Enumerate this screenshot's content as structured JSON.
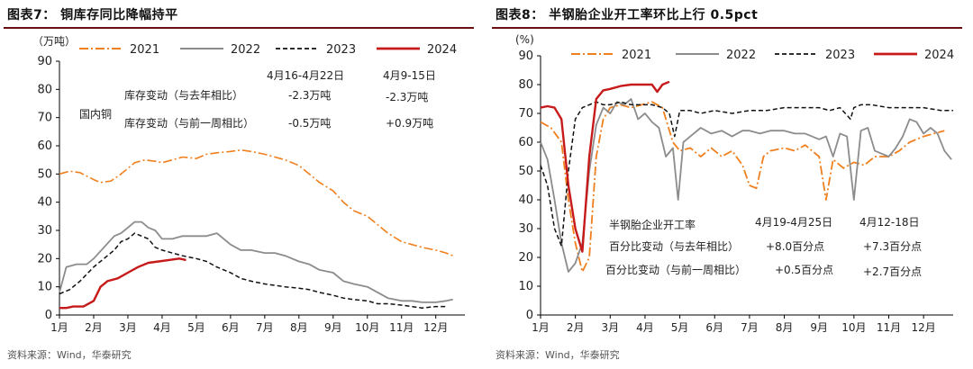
{
  "left": {
    "title": "图表7： 铜库存同比降幅持平",
    "source": "资料来源：Wind，华泰研究",
    "chart_data": {
      "type": "line",
      "unit": "（万吨）",
      "ylim": [
        0,
        90
      ],
      "yticks": [
        "0",
        "10",
        "20",
        "30",
        "40",
        "50",
        "60",
        "70",
        "80",
        "90"
      ],
      "months": [
        "1月",
        "2月",
        "3月",
        "4月",
        "5月",
        "6月",
        "7月",
        "8月",
        "9月",
        "10月",
        "11月",
        "12月"
      ],
      "xmax": 12.85,
      "legend": [
        "2021",
        "2022",
        "2023",
        "2024"
      ],
      "series": [
        {
          "name": "2021",
          "color": "#f07f1e",
          "dash": "10,3,2,3",
          "width": 1.6,
          "x": [
            1,
            1.3,
            1.6,
            2,
            2.2,
            2.5,
            2.8,
            3,
            3.2,
            3.5,
            3.8,
            4,
            4.3,
            4.6,
            5,
            5.3,
            5.6,
            6,
            6.3,
            6.6,
            7,
            7.3,
            7.6,
            8,
            8.3,
            8.6,
            9,
            9.3,
            9.6,
            10,
            10.3,
            10.6,
            11,
            11.3,
            11.6,
            12,
            12.3,
            12.5
          ],
          "y": [
            50,
            51,
            50.5,
            48,
            47,
            47.5,
            50,
            52,
            54,
            55,
            54.5,
            54,
            55,
            56,
            55.5,
            57,
            57.5,
            58,
            58.5,
            58,
            57,
            56,
            55,
            53,
            50,
            47,
            44,
            40,
            37,
            35,
            32,
            29,
            26,
            25,
            24,
            23,
            22,
            21
          ]
        },
        {
          "name": "2022",
          "color": "#8c8c8c",
          "dash": "",
          "width": 1.8,
          "x": [
            1,
            1.2,
            1.5,
            1.8,
            2,
            2.3,
            2.6,
            2.8,
            3,
            3.2,
            3.4,
            3.6,
            3.8,
            4,
            4.3,
            4.6,
            5,
            5.3,
            5.6,
            6,
            6.3,
            6.6,
            7,
            7.3,
            7.6,
            8,
            8.3,
            8.6,
            9,
            9.3,
            9.6,
            10,
            10.3,
            10.6,
            11,
            11.3,
            11.6,
            12,
            12.3,
            12.5
          ],
          "y": [
            8,
            17,
            18,
            18,
            20,
            24,
            28,
            29,
            31,
            33,
            33,
            31,
            30,
            27,
            27,
            28,
            28,
            28,
            29,
            25,
            23,
            23,
            22,
            22,
            21,
            19,
            18,
            16,
            15,
            12,
            11,
            10,
            8,
            6,
            5,
            5,
            4.5,
            4.5,
            5,
            5.5
          ]
        },
        {
          "name": "2023",
          "color": "#111111",
          "dash": "5,3",
          "width": 1.5,
          "x": [
            1,
            1.3,
            1.6,
            2,
            2.3,
            2.6,
            2.8,
            3,
            3.2,
            3.4,
            3.6,
            3.8,
            4,
            4.3,
            4.6,
            5,
            5.3,
            5.6,
            6,
            6.3,
            6.6,
            7,
            7.3,
            7.6,
            8,
            8.3,
            8.6,
            9,
            9.3,
            9.6,
            10,
            10.3,
            10.6,
            11,
            11.3,
            11.6,
            12,
            12.3
          ],
          "y": [
            7.5,
            9,
            12,
            17,
            20,
            23,
            26,
            27,
            29,
            28,
            27,
            24,
            23,
            22,
            21,
            20,
            19,
            17,
            15,
            13,
            12,
            11,
            10.5,
            10,
            9.5,
            9,
            8,
            7,
            6,
            5.5,
            5,
            4,
            4,
            3.5,
            3,
            2.5,
            3,
            3
          ]
        },
        {
          "name": "2024",
          "color": "#c71a1a",
          "dash": "",
          "width": 2.4,
          "x": [
            1,
            1.2,
            1.4,
            1.7,
            2,
            2.2,
            2.4,
            2.7,
            3,
            3.3,
            3.6,
            3.9,
            4.2,
            4.5,
            4.7
          ],
          "y": [
            2.5,
            2.5,
            3,
            3,
            5,
            10,
            12,
            13,
            15,
            17,
            18.5,
            19,
            19.5,
            20,
            19.5
          ]
        }
      ],
      "annotations": {
        "date1": "4月16-4月22日",
        "date2": "4月9-15日",
        "category": "国内铜",
        "row1_label": "库存变动（与去年相比）",
        "row1_val1": "-2.3万吨",
        "row1_val2": "-2.3万吨",
        "row2_label": "库存变动（与前一周相比）",
        "row2_val1": "-0.5万吨",
        "row2_val2": "+0.9万吨"
      }
    }
  },
  "right": {
    "title": "图表8： 半钢胎企业开工率环比上行 0.5pct",
    "source": "资料来源：Wind，华泰研究",
    "chart_data": {
      "type": "line",
      "unit": "(%)",
      "ylim": [
        0,
        90
      ],
      "yticks": [
        "0",
        "10",
        "20",
        "30",
        "40",
        "50",
        "60",
        "70",
        "80",
        "90"
      ],
      "months": [
        "1月",
        "2月",
        "3月",
        "4月",
        "5月",
        "6月",
        "7月",
        "8月",
        "9月",
        "10月",
        "11月",
        "12月"
      ],
      "xmax": 12.85,
      "legend": [
        "2021",
        "2022",
        "2023",
        "2024"
      ],
      "series": [
        {
          "name": "2021",
          "color": "#f07f1e",
          "dash": "10,3,2,3",
          "width": 1.8,
          "x": [
            1,
            1.3,
            1.6,
            1.8,
            2,
            2.2,
            2.4,
            2.6,
            2.8,
            3,
            3.3,
            3.6,
            3.9,
            4.2,
            4.5,
            4.8,
            5,
            5.3,
            5.6,
            5.9,
            6.2,
            6.5,
            6.8,
            7,
            7.2,
            7.4,
            7.6,
            8,
            8.3,
            8.6,
            9,
            9.2,
            9.4,
            9.7,
            10,
            10.3,
            10.6,
            11,
            11.3,
            11.6,
            12,
            12.3,
            12.6
          ],
          "y": [
            67,
            65,
            60,
            40,
            25,
            15,
            20,
            55,
            68,
            72,
            73,
            72,
            73,
            74,
            72,
            60,
            57,
            58,
            55,
            58,
            55,
            57,
            52,
            45,
            44,
            55,
            57,
            58,
            57,
            59,
            55,
            40,
            54,
            51,
            53,
            52,
            55,
            55,
            57,
            60,
            62,
            63,
            64
          ]
        },
        {
          "name": "2022",
          "color": "#8c8c8c",
          "dash": "",
          "width": 1.8,
          "x": [
            1,
            1.2,
            1.4,
            1.6,
            1.8,
            2,
            2.2,
            2.4,
            2.6,
            2.8,
            3,
            3.2,
            3.4,
            3.6,
            3.8,
            4,
            4.2,
            4.4,
            4.6,
            4.8,
            4.95,
            5.1,
            5.3,
            5.6,
            5.9,
            6.2,
            6.5,
            6.8,
            7,
            7.3,
            7.6,
            8,
            8.3,
            8.6,
            9,
            9.2,
            9.4,
            9.6,
            9.8,
            10,
            10.2,
            10.4,
            10.6,
            10.8,
            11,
            11.2,
            11.4,
            11.6,
            11.8,
            12,
            12.2,
            12.4,
            12.6,
            12.8
          ],
          "y": [
            60,
            54,
            40,
            25,
            15,
            18,
            25,
            50,
            66,
            72,
            70,
            74,
            73,
            75,
            68,
            70,
            67,
            65,
            55,
            58,
            40,
            60,
            62,
            65,
            63,
            64,
            62,
            64,
            64,
            63,
            64,
            64,
            63,
            63,
            61,
            62,
            55,
            63,
            62,
            40,
            64,
            65,
            57,
            56,
            55,
            58,
            62,
            68,
            67,
            63,
            65,
            63,
            57,
            54
          ]
        },
        {
          "name": "2023",
          "color": "#111111",
          "dash": "5,3",
          "width": 1.5,
          "x": [
            1,
            1.2,
            1.4,
            1.6,
            1.8,
            2,
            2.2,
            2.4,
            2.6,
            2.8,
            3,
            3.3,
            3.6,
            3.9,
            4.2,
            4.5,
            4.7,
            4.85,
            5,
            5.3,
            5.6,
            6,
            6.5,
            7,
            7.5,
            8,
            8.5,
            9,
            9.3,
            9.6,
            9.9,
            10,
            10.2,
            10.5,
            11,
            11.5,
            12,
            12.5,
            12.85
          ],
          "y": [
            52,
            45,
            30,
            24,
            50,
            68,
            72,
            73,
            74,
            73,
            73,
            74,
            73,
            73,
            73,
            72,
            70,
            62,
            71,
            71,
            70,
            71,
            70,
            71,
            71,
            72,
            72,
            72,
            71,
            72,
            68,
            72,
            73,
            73,
            72,
            72,
            72,
            71,
            71
          ]
        },
        {
          "name": "2024",
          "color": "#c71a1a",
          "dash": "",
          "width": 2.4,
          "x": [
            1,
            1.2,
            1.4,
            1.6,
            1.8,
            2,
            2.2,
            2.4,
            2.6,
            2.8,
            3,
            3.3,
            3.6,
            3.9,
            4.2,
            4.35,
            4.5,
            4.7
          ],
          "y": [
            72,
            72.5,
            72,
            68,
            45,
            30,
            22,
            55,
            75,
            78,
            78.5,
            79.5,
            80,
            80,
            80,
            77.5,
            80,
            81
          ]
        }
      ],
      "annotations": {
        "category": "半钢胎企业开工率",
        "date1": "4月19-4月25日",
        "date2": "4月12-18日",
        "row1_label": "百分比变动（与去年相比）",
        "row1_val1": "+8.0百分点",
        "row1_val2": "+7.3百分点",
        "row2_label": "百分比变动（与前一周相比）",
        "row2_val1": "+0.5百分点",
        "row2_val2": "+2.7百分点"
      }
    }
  }
}
